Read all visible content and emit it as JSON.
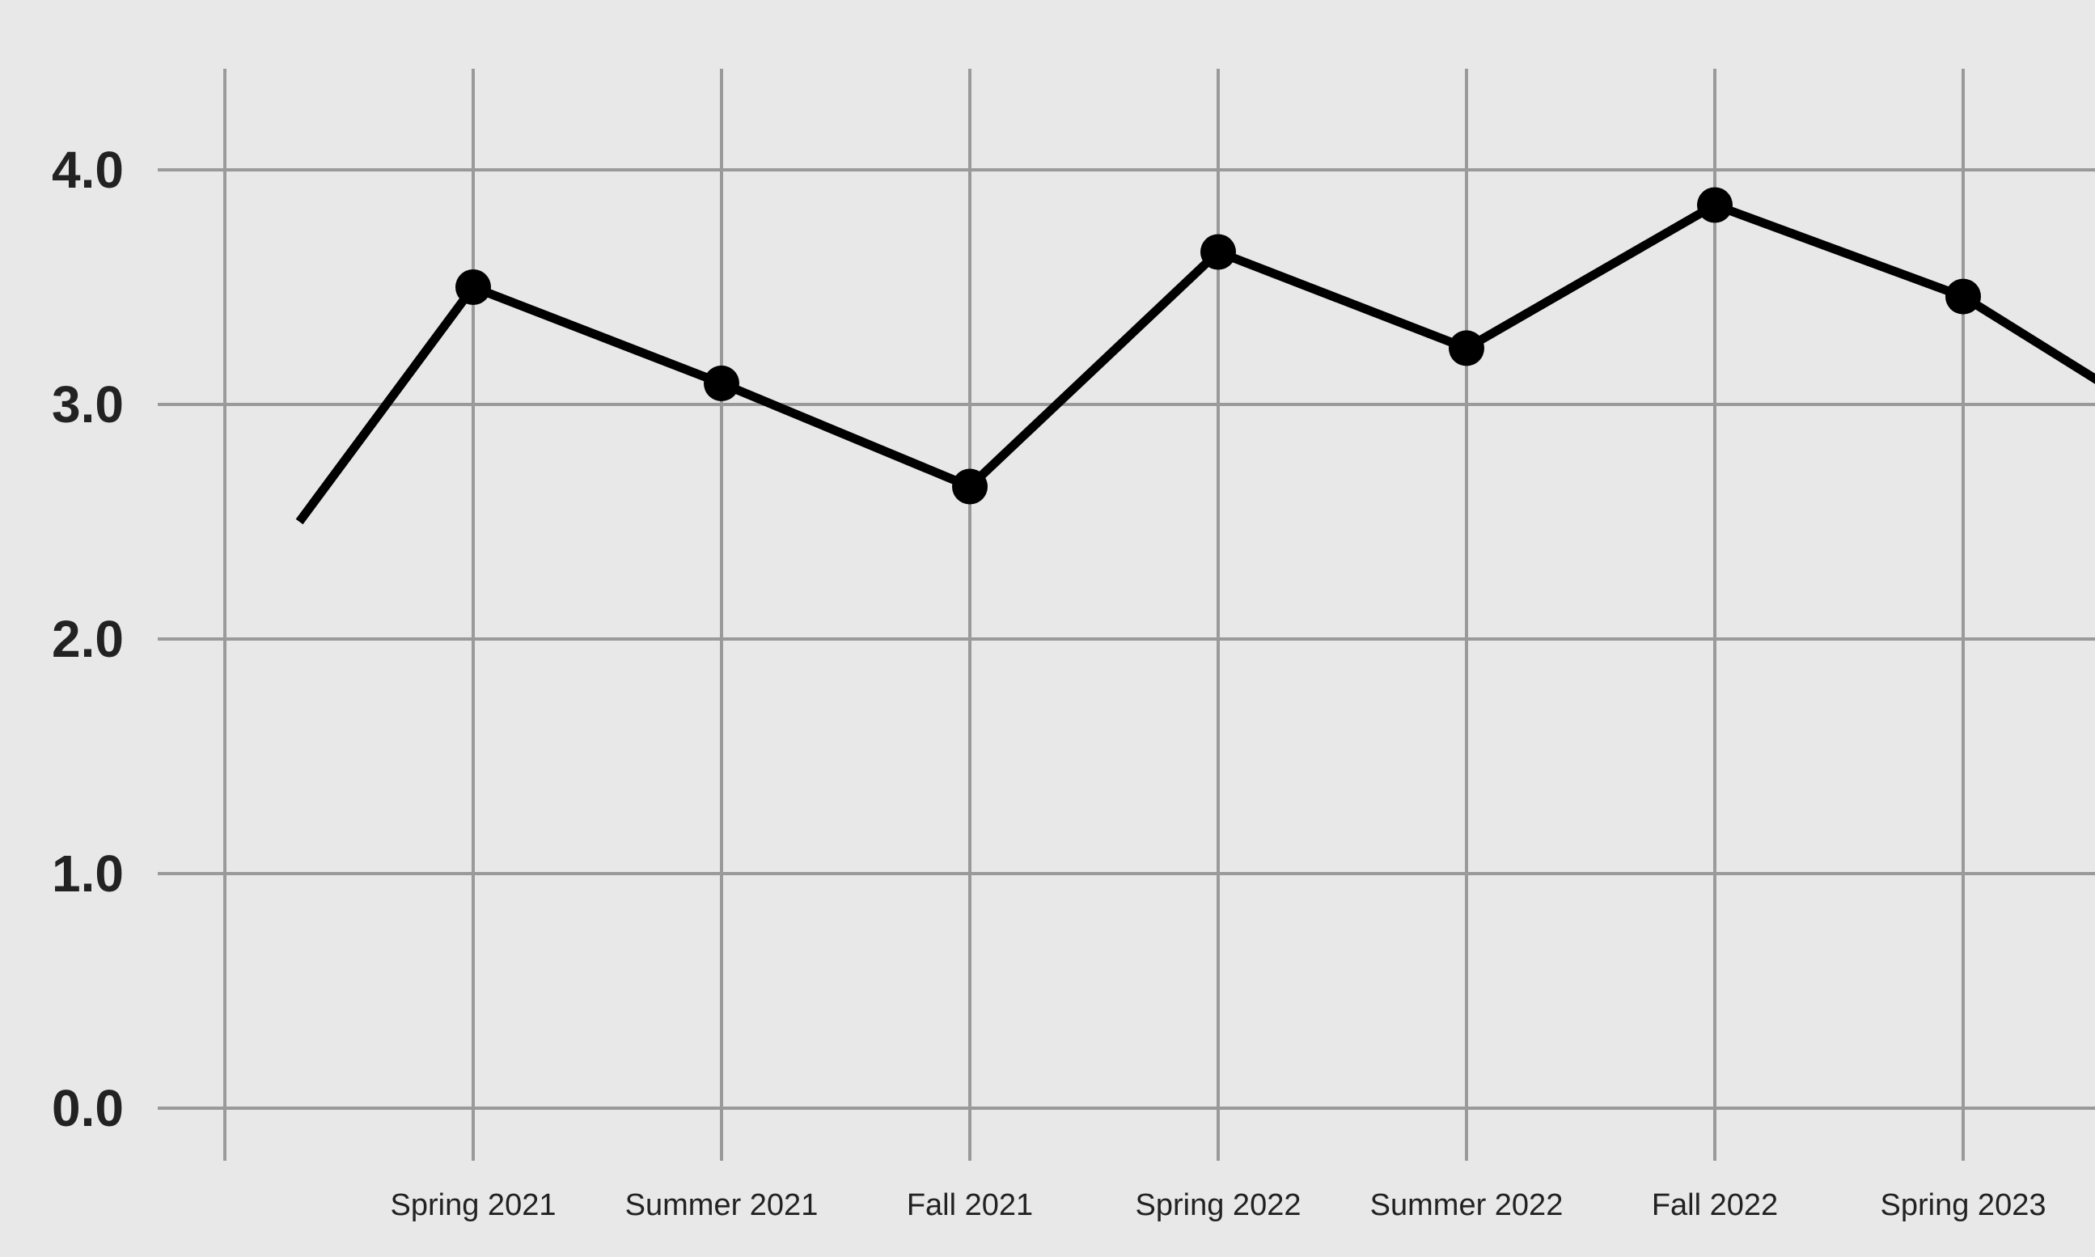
{
  "chart_data": {
    "type": "line",
    "title": "",
    "xlabel": "",
    "ylabel": "",
    "categories": [
      "",
      "Spring 2021",
      "Summer 2021",
      "Fall 2021",
      "Spring 2022",
      "Summer 2022",
      "Fall 2022",
      "Spring 2023",
      ""
    ],
    "series": [
      {
        "values": [
          2.5,
          3.5,
          3.09,
          2.65,
          3.65,
          3.24,
          3.85,
          3.46,
          2.8
        ]
      }
    ],
    "markers_on": [
      false,
      true,
      true,
      true,
      true,
      true,
      true,
      true,
      false
    ],
    "ylim": [
      0,
      4.0
    ],
    "yticks": [
      {
        "value": 0.0,
        "label": "0.0"
      },
      {
        "value": 1.0,
        "label": "1.0"
      },
      {
        "value": 2.0,
        "label": "2.0"
      },
      {
        "value": 3.0,
        "label": "3.0"
      },
      {
        "value": 4.0,
        "label": "4.0"
      }
    ],
    "grid": true,
    "legend": "none",
    "colors": {
      "background": "#e8e8e8",
      "grid": "#9a9a9a",
      "line": "#000000",
      "text": "#222222"
    }
  }
}
